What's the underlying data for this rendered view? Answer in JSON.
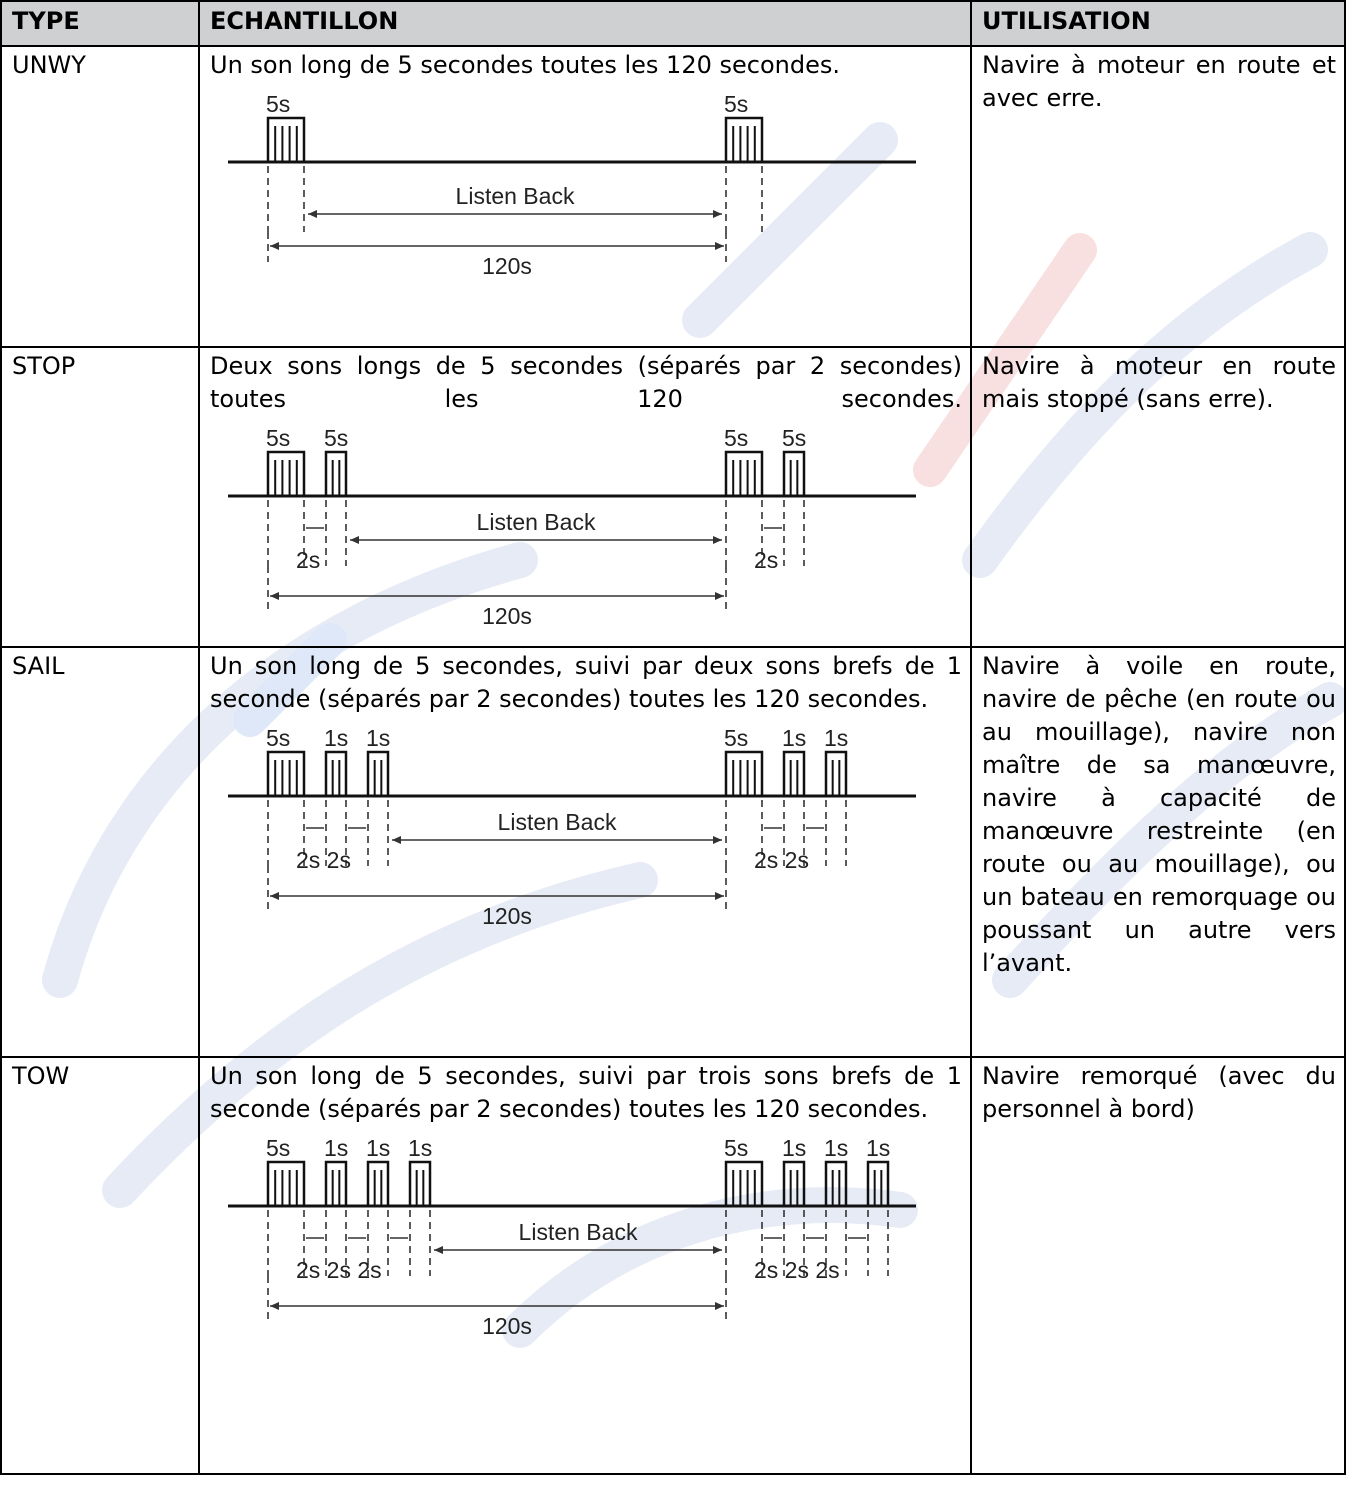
{
  "table": {
    "headers": {
      "type": "TYPE",
      "sample": "ECHANTILLON",
      "usage": "UTILISATION"
    },
    "rows": [
      {
        "type": "UNWY",
        "description": "Un son long de 5 secondes toutes les 120 secondes.",
        "usage": "Navire à moteur en route et avec erre.",
        "diagram": {
          "pulse_labels_left": [
            "5s"
          ],
          "pulse_labels_right": [
            "5s"
          ],
          "listen_label": "Listen Back",
          "gap_labels_left": "",
          "gap_labels_right": "",
          "period_label": "120s"
        }
      },
      {
        "type": "STOP",
        "description": "Deux sons longs de 5 secondes (séparés par 2 secondes) toutes les 120 secondes.",
        "usage": "Navire à moteur en route mais stoppé (sans erre).",
        "diagram": {
          "pulse_labels_left": [
            "5s",
            "5s"
          ],
          "pulse_labels_right": [
            "5s",
            "5s"
          ],
          "listen_label": "Listen Back",
          "gap_labels_left": "2s",
          "gap_labels_right": "2s",
          "period_label": "120s"
        }
      },
      {
        "type": "SAIL",
        "description": "Un son long de 5 secondes, suivi par deux sons brefs de 1 seconde (séparés par 2 secondes) toutes les 120 secondes.",
        "usage": "Navire à voile en route, navire de pêche (en route ou au mouillage), navire non maître de sa manœuvre, navire à capacité de manœuvre restreinte (en route ou au mouillage), ou un bateau en remorquage ou poussant un autre vers l’avant.",
        "diagram": {
          "pulse_labels_left": [
            "5s",
            "1s",
            "1s"
          ],
          "pulse_labels_right": [
            "5s",
            "1s",
            "1s"
          ],
          "listen_label": "Listen Back",
          "gap_labels_left": "2s 2s",
          "gap_labels_right": "2s 2s",
          "period_label": "120s"
        }
      },
      {
        "type": "TOW",
        "description": "Un son long de 5 secondes, suivi par trois sons brefs de 1 seconde (séparés par 2 secondes) toutes les 120 secondes.",
        "usage": "Navire remorqué (avec du personnel à bord)",
        "diagram": {
          "pulse_labels_left": [
            "5s",
            "1s",
            "1s",
            "1s"
          ],
          "pulse_labels_right": [
            "5s",
            "1s",
            "1s",
            "1s"
          ],
          "listen_label": "Listen Back",
          "gap_labels_left": "2s 2s 2s",
          "gap_labels_right": "2s 2s 2s",
          "period_label": "120s"
        }
      }
    ]
  },
  "watermark_colors": {
    "blue": "#dfe7f6",
    "pink": "#f9dede"
  }
}
